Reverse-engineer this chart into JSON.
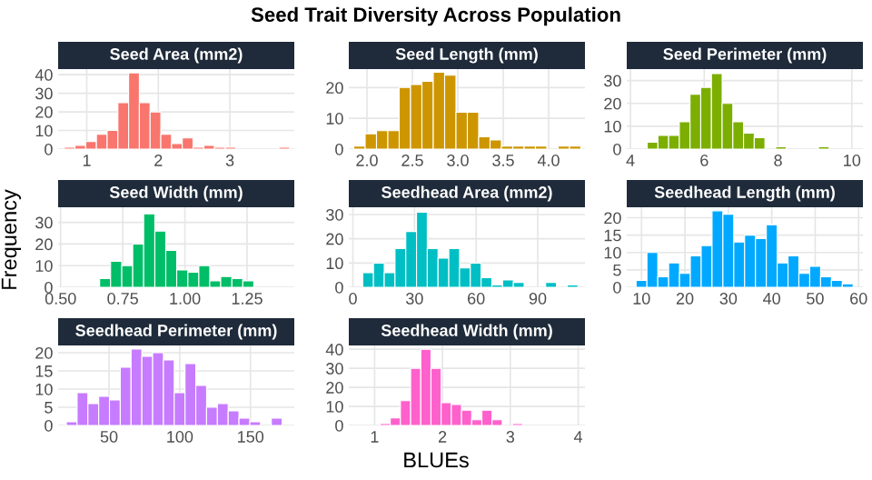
{
  "chart_data": [
    {
      "type": "histogram",
      "title": "Seed Area (mm2)",
      "color": "#f8766d",
      "grid": true,
      "bins": [
        0.685,
        0.835,
        0.985,
        1.135,
        1.285,
        1.435,
        1.585,
        1.735,
        1.885,
        2.035,
        2.185,
        2.335,
        2.485,
        2.635,
        2.785,
        2.935,
        3.085,
        3.235,
        3.385,
        3.535,
        3.685,
        3.835
      ],
      "values": [
        1,
        2,
        4,
        8,
        10,
        25,
        41,
        25,
        20,
        8,
        3,
        6,
        1,
        2,
        1,
        1,
        0,
        0,
        0,
        0,
        1
      ],
      "xlim": [
        0.6,
        3.9
      ],
      "xticks": [
        1,
        2,
        3
      ],
      "ylim": [
        0,
        43
      ],
      "yticks": [
        0,
        10,
        20,
        30,
        40
      ]
    },
    {
      "type": "histogram",
      "title": "Seed Length (mm)",
      "color": "#cd9600",
      "grid": true,
      "annotations": [
        "Seed Trait Diversity Across Population"
      ],
      "bins": [
        1.855,
        1.98,
        2.105,
        2.23,
        2.355,
        2.48,
        2.605,
        2.73,
        2.855,
        2.98,
        3.105,
        3.23,
        3.355,
        3.48,
        3.605,
        3.73,
        3.855,
        3.98,
        4.105,
        4.23,
        4.355
      ],
      "values": [
        1,
        5,
        6,
        6,
        20,
        21,
        22,
        25,
        24,
        12,
        12,
        4,
        3,
        1,
        1,
        1,
        1,
        0,
        1,
        1
      ],
      "xlim": [
        1.8,
        4.4
      ],
      "xticks": [
        {
          "value": 2,
          "label": "2.0"
        },
        {
          "value": 2.5,
          "label": "2.5"
        },
        {
          "value": 3,
          "label": "3.0"
        },
        {
          "value": 3.5,
          "label": "3.5"
        },
        {
          "value": 4,
          "label": "4.0"
        }
      ],
      "ylim": [
        0,
        26
      ],
      "yticks": [
        0,
        10,
        20
      ]
    },
    {
      "type": "histogram",
      "title": "Seed Perimeter (mm)",
      "color": "#7cae00",
      "grid": true,
      "bins": [
        4.455,
        4.745,
        5.035,
        5.325,
        5.615,
        5.905,
        6.195,
        6.485,
        6.775,
        7.065,
        7.355,
        7.645,
        7.935,
        8.225,
        8.515,
        8.805,
        9.095,
        9.385
      ],
      "values": [
        3,
        6,
        6,
        12,
        24,
        27,
        33,
        20,
        12,
        7,
        5,
        0,
        1,
        0,
        0,
        0,
        1
      ],
      "xlim": [
        3.9,
        10.3
      ],
      "xticks": [
        4,
        6,
        8,
        10
      ],
      "ylim": [
        0,
        35
      ],
      "yticks": [
        0,
        10,
        20,
        30
      ]
    },
    {
      "type": "histogram",
      "title": "Seed Width (mm)",
      "color": "#00be67",
      "grid": true,
      "ylabel": "Frequency",
      "bins": [
        0.657,
        0.701,
        0.746,
        0.79,
        0.834,
        0.879,
        0.923,
        0.967,
        1.012,
        1.056,
        1.1,
        1.144,
        1.189,
        1.233,
        1.277
      ],
      "values": [
        4,
        12,
        10,
        20,
        34,
        26,
        17,
        8,
        7,
        10,
        3,
        5,
        4,
        3
      ],
      "xlim": [
        0.49,
        1.44
      ],
      "xticks": [
        {
          "value": 0.5,
          "label": "0.50"
        },
        {
          "value": 0.75,
          "label": "0.75"
        },
        {
          "value": 1,
          "label": "1.00"
        },
        {
          "value": 1.25,
          "label": "1.25"
        }
      ],
      "ylim": [
        0,
        37
      ],
      "yticks": [
        0,
        10,
        20,
        30
      ]
    },
    {
      "type": "histogram",
      "title": "Seedhead Area (mm2)",
      "color": "#00bfc4",
      "grid": true,
      "bins": [
        4.78,
        10.02,
        15.26,
        20.5,
        25.74,
        30.98,
        36.22,
        41.46,
        46.7,
        51.94,
        57.18,
        62.42,
        67.66,
        72.9,
        78.14,
        83.38,
        88.62,
        93.86,
        99.1,
        104.34,
        109.58
      ],
      "values": [
        6,
        10,
        6,
        16,
        23,
        31,
        16,
        12,
        16,
        8,
        10,
        4,
        1,
        3,
        2,
        0,
        0,
        2,
        0,
        1
      ],
      "xlim": [
        -2,
        113
      ],
      "xticks": [
        0,
        30,
        60,
        90
      ],
      "ylim": [
        0,
        33
      ],
      "yticks": [
        0,
        10,
        20,
        30
      ]
    },
    {
      "type": "histogram",
      "title": "Seedhead Length (mm)",
      "color": "#00a9ff",
      "grid": true,
      "bins": [
        8.75,
        11.25,
        13.75,
        16.25,
        18.75,
        21.25,
        23.75,
        26.25,
        28.75,
        31.25,
        33.75,
        36.25,
        38.75,
        41.25,
        43.75,
        46.25,
        48.75,
        51.25,
        53.75,
        56.25,
        58.75
      ],
      "values": [
        2,
        10,
        3,
        7,
        4,
        9,
        12,
        22,
        21,
        13,
        15,
        14,
        18,
        7,
        9,
        4,
        6,
        3,
        2,
        1
      ],
      "xlim": [
        6.6,
        61
      ],
      "xticks": [
        10,
        20,
        30,
        40,
        50,
        60
      ],
      "ylim": [
        0,
        23
      ],
      "yticks": [
        0,
        5,
        10,
        15,
        20
      ]
    },
    {
      "type": "histogram",
      "title": "Seedhead Perimeter (mm)",
      "color": "#c77cff",
      "grid": true,
      "bins": [
        19.79,
        27.42,
        35.05,
        42.68,
        50.31,
        57.94,
        65.57,
        73.2,
        80.83,
        88.46,
        96.09,
        103.72,
        111.35,
        118.98,
        126.61,
        134.24,
        141.87,
        149.5,
        157.13,
        164.76,
        172.39
      ],
      "values": [
        1,
        9,
        6,
        8,
        7,
        16,
        21,
        19,
        20,
        18,
        9,
        17,
        11,
        5,
        6,
        4,
        2,
        1,
        0,
        2
      ],
      "xlim": [
        14,
        181
      ],
      "xticks": [
        50,
        100,
        150
      ],
      "ylim": [
        0,
        22
      ],
      "yticks": [
        0,
        5,
        10,
        15,
        20
      ]
    },
    {
      "type": "histogram",
      "title": "Seedhead Width (mm)",
      "color": "#ff61cc",
      "grid": true,
      "xlabel": "BLUEs",
      "bins": [
        0.781,
        0.931,
        1.081,
        1.231,
        1.381,
        1.531,
        1.681,
        1.831,
        1.981,
        2.131,
        2.281,
        2.431,
        2.581,
        2.731,
        2.881,
        3.031,
        3.181,
        3.331,
        3.481,
        3.631,
        3.781,
        3.931,
        4.081
      ],
      "values": [
        0,
        0,
        1,
        4,
        13,
        30,
        40,
        30,
        12,
        11,
        8,
        3,
        8,
        3,
        0,
        1,
        0,
        0,
        0,
        0,
        0,
        0
      ],
      "xlim": [
        0.62,
        4.1
      ],
      "xticks": [
        1,
        2,
        3,
        4
      ],
      "ylim": [
        0,
        42
      ],
      "yticks": [
        0,
        10,
        20,
        30,
        40
      ]
    }
  ]
}
